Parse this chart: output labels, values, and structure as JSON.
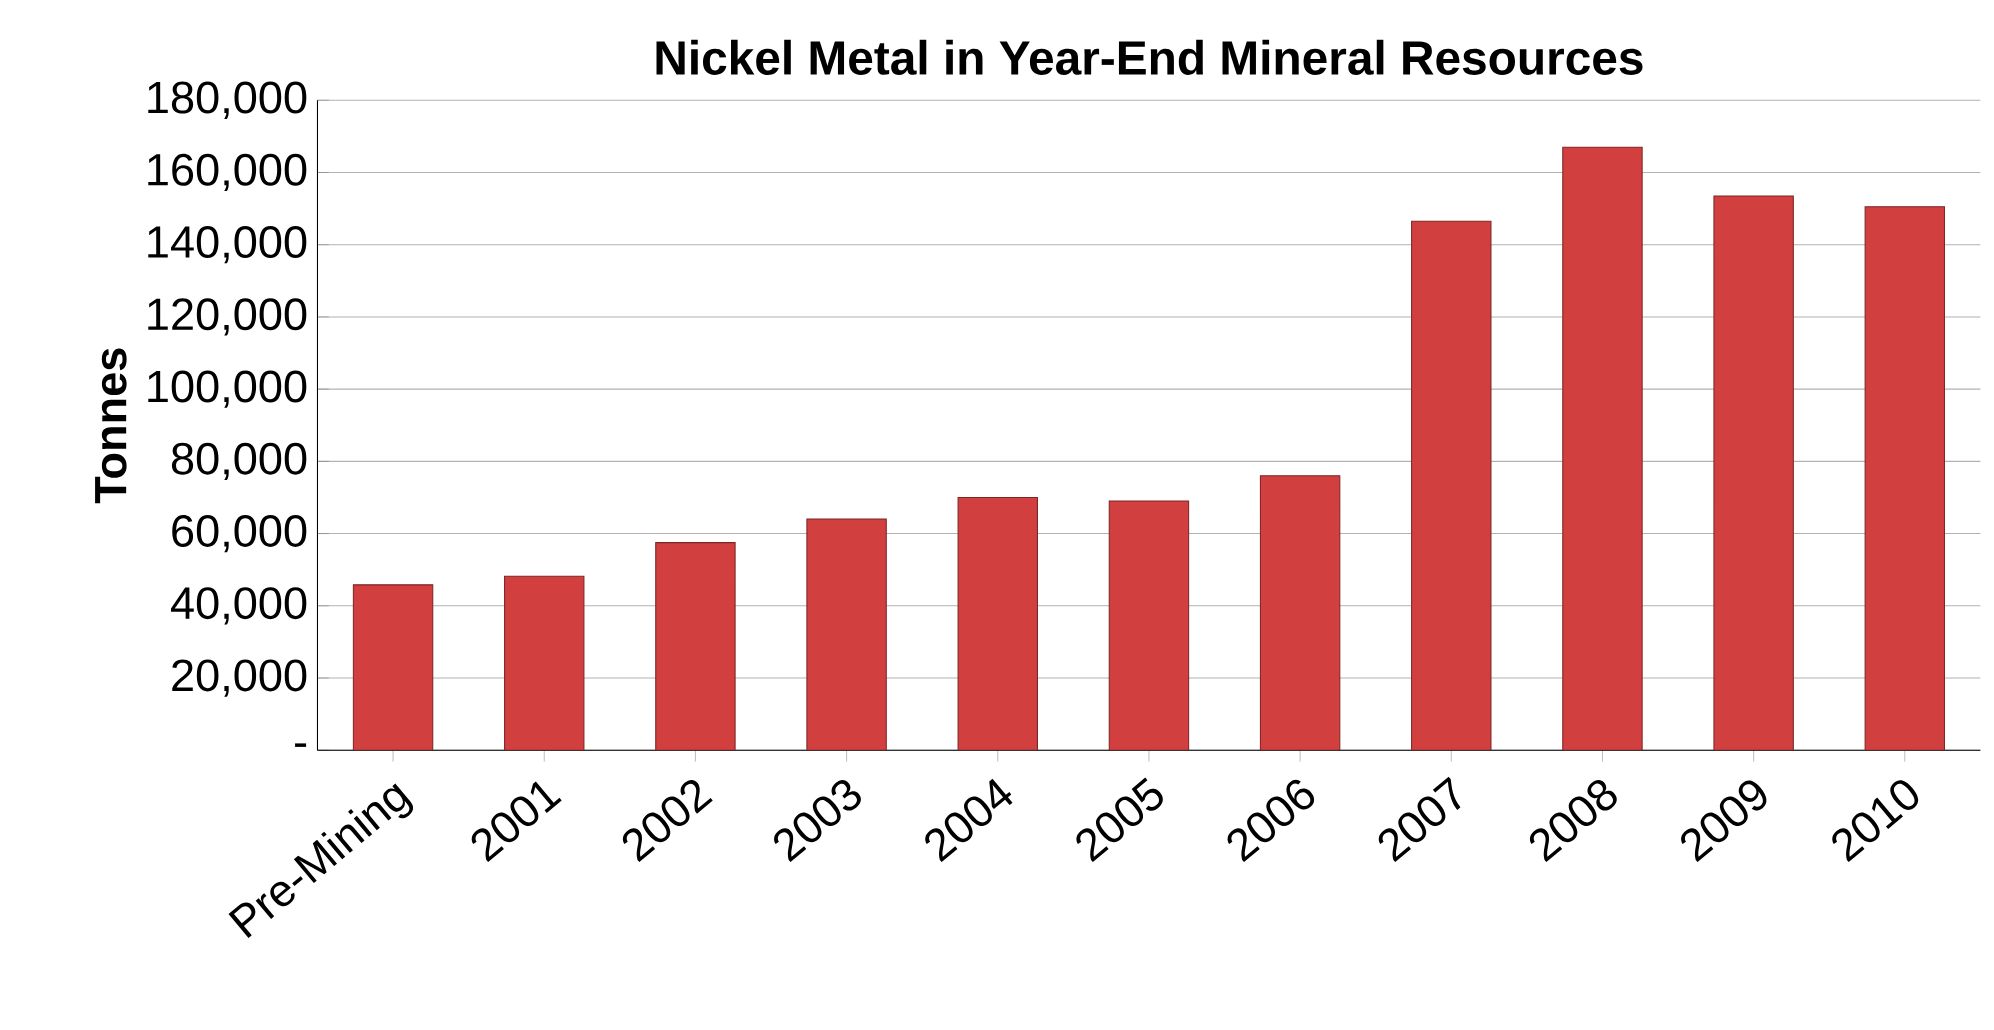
{
  "chart_data": {
    "type": "bar",
    "title": "Nickel Metal in Year-End Mineral Resources",
    "ylabel": "Tonnes",
    "categories": [
      "Pre-Mining",
      "2001",
      "2002",
      "2003",
      "2004",
      "2005",
      "2006",
      "2007",
      "2008",
      "2009",
      "2010"
    ],
    "values": [
      45800,
      48200,
      57500,
      64000,
      70000,
      69000,
      76000,
      146500,
      167000,
      153500,
      150500
    ],
    "color": "#d23f3f",
    "ylim": [
      0,
      180000
    ],
    "yticks": [
      {
        "value": 0,
        "label": "-"
      },
      {
        "value": 20000,
        "label": "20,000"
      },
      {
        "value": 40000,
        "label": "40,000"
      },
      {
        "value": 60000,
        "label": "60,000"
      },
      {
        "value": 80000,
        "label": "80,000"
      },
      {
        "value": 100000,
        "label": "100,000"
      },
      {
        "value": 120000,
        "label": "120,000"
      },
      {
        "value": 140000,
        "label": "140,000"
      },
      {
        "value": 160000,
        "label": "160,000"
      },
      {
        "value": 180000,
        "label": "180,000"
      }
    ],
    "grid": "y"
  }
}
